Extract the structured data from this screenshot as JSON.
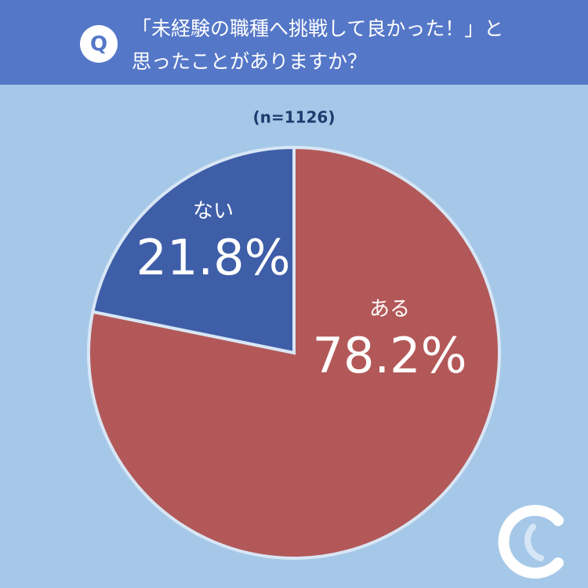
{
  "chart_data": {
    "type": "pie",
    "badge": "Q",
    "title": [
      "「未経験の職種へ挑戦して良かった！」と",
      "思ったことがありますか？"
    ],
    "subtitle": "(n=1126)",
    "categories": [
      "ある",
      "ない"
    ],
    "values": [
      78.2,
      21.8
    ],
    "value_labels": [
      "78.2%",
      "21.8%"
    ],
    "colors": [
      "#b35858",
      "#3f5ea8"
    ]
  }
}
